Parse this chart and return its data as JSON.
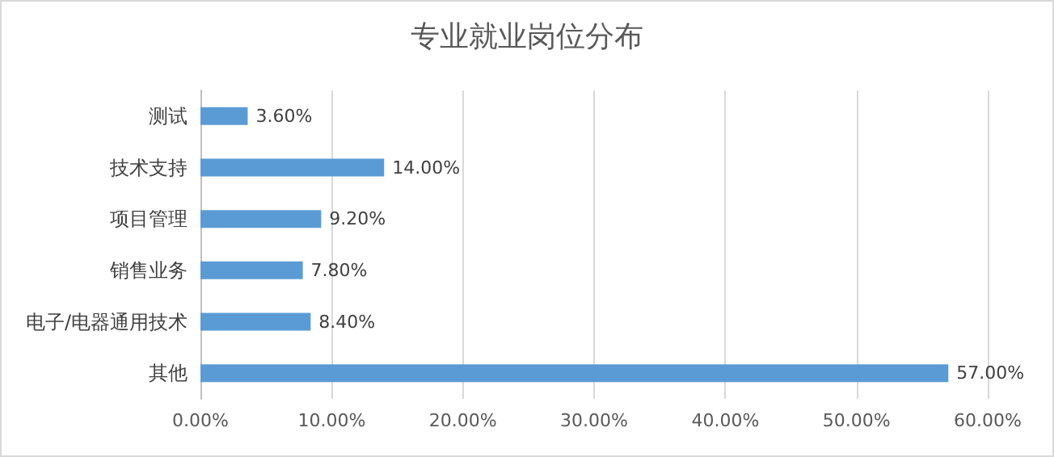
{
  "chart_data": {
    "type": "bar",
    "orientation": "horizontal",
    "title": "专业就业岗位分布",
    "categories": [
      "测试",
      "技术支持",
      "项目管理",
      "销售业务",
      "电子/电器通用技术",
      "其他"
    ],
    "values": [
      3.6,
      14,
      9.2,
      7.8,
      8.4,
      57
    ],
    "value_labels": [
      "3.60%",
      "14.00%",
      "9.20%",
      "7.80%",
      "8.40%",
      "57.00%"
    ],
    "color": "#5b9bd5",
    "xlim": [
      0,
      60
    ],
    "xticks": [
      {
        "value": 0,
        "label": "0.00%"
      },
      {
        "value": 10,
        "label": "10.00%"
      },
      {
        "value": 20,
        "label": "20.00%"
      },
      {
        "value": 30,
        "label": "30.00%"
      },
      {
        "value": 40,
        "label": "40.00%"
      },
      {
        "value": 50,
        "label": "50.00%"
      },
      {
        "value": 60,
        "label": "60.00%"
      }
    ],
    "grid": "x"
  }
}
